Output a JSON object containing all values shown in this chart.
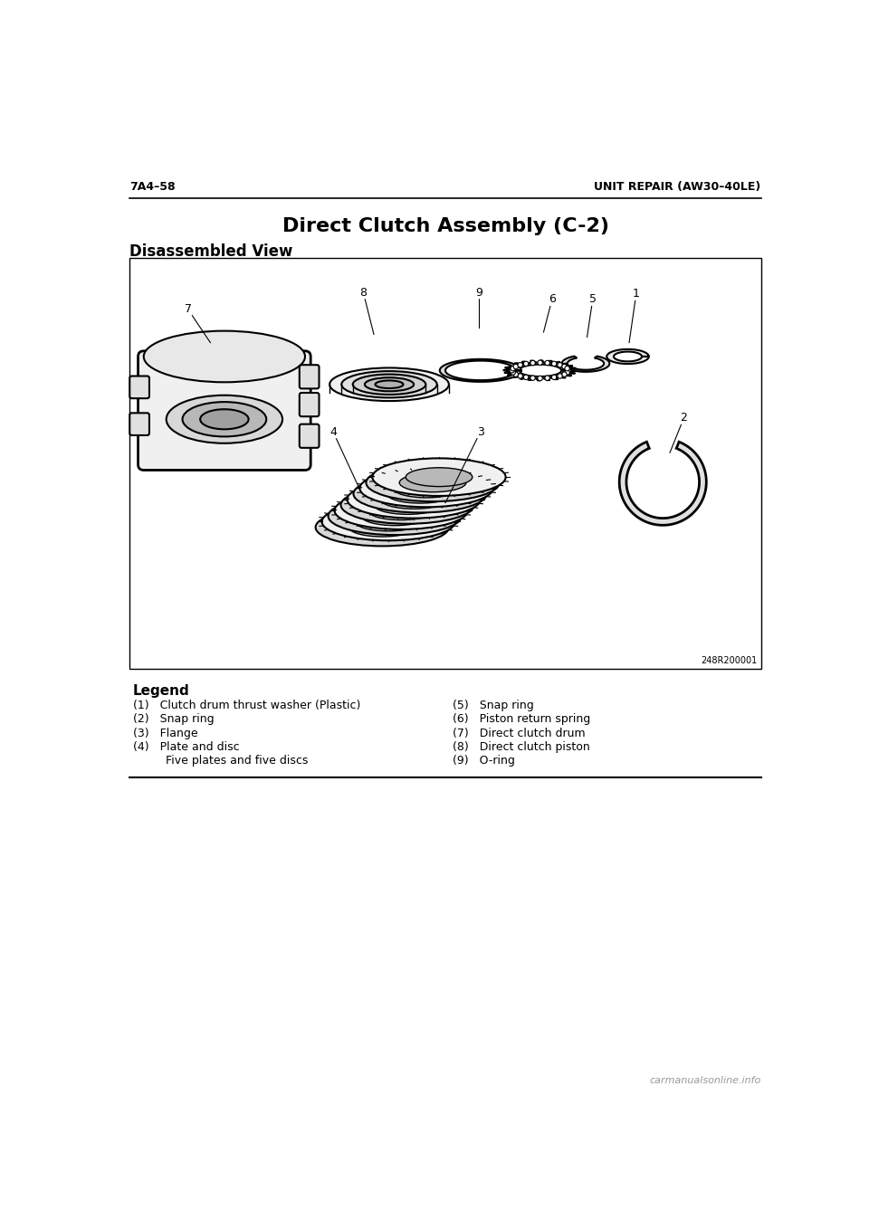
{
  "page_header_left": "7A4–58",
  "page_header_right": "UNIT REPAIR (AW30–40LE)",
  "title": "Direct Clutch Assembly (C-2)",
  "section_title": "Disassembled View",
  "diagram_ref": "248R200001",
  "legend_title": "Legend",
  "legend_left": [
    "(1)   Clutch drum thrust washer (Plastic)",
    "(2)   Snap ring",
    "(3)   Flange",
    "(4)   Plate and disc",
    "         Five plates and five discs"
  ],
  "legend_right": [
    "(5)   Snap ring",
    "(6)   Piston return spring",
    "(7)   Direct clutch drum",
    "(8)   Direct clutch piston",
    "(9)   O-ring"
  ],
  "bg_color": "#ffffff",
  "text_color": "#000000",
  "header_font_size": 9,
  "title_font_size": 16,
  "section_font_size": 12,
  "legend_font_size": 9,
  "watermark_text": "carmanualsonline.info",
  "watermark_font_size": 8
}
